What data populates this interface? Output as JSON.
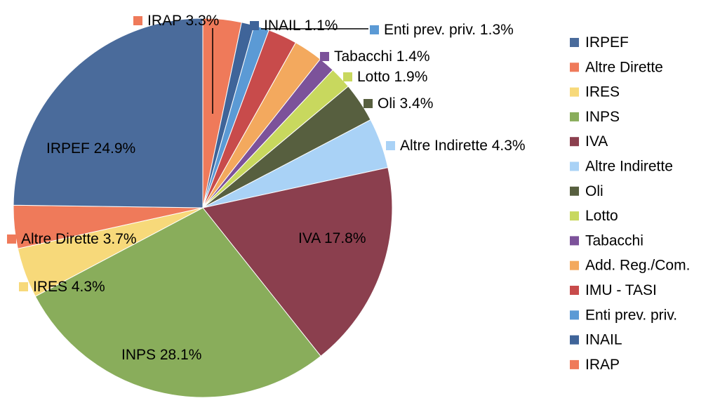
{
  "chart_data": {
    "type": "pie",
    "title": "",
    "start_angle_deg": 0,
    "direction": "clockwise",
    "legend_position": "right",
    "slices": [
      {
        "name": "IRAP",
        "value": 3.3,
        "label": "IRAP 3.3%",
        "color": "#ef7a5a"
      },
      {
        "name": "INAIL",
        "value": 1.1,
        "label": "INAIL 1.1%",
        "color": "#3f6499"
      },
      {
        "name": "Enti prev. priv.",
        "value": 1.3,
        "label": "Enti prev. priv. 1.3%",
        "color": "#5b9ad5"
      },
      {
        "name": "IMU - TASI",
        "value": 2.5,
        "label": "",
        "color": "#c84b4b"
      },
      {
        "name": "Add. Reg./Com.",
        "value": 2.5,
        "label": "",
        "color": "#f3a95e"
      },
      {
        "name": "Tabacchi",
        "value": 1.4,
        "label": "Tabacchi 1.4%",
        "color": "#7c529a"
      },
      {
        "name": "Lotto",
        "value": 1.9,
        "label": "Lotto 1.9%",
        "color": "#c8d85e"
      },
      {
        "name": "Oli",
        "value": 3.4,
        "label": "Oli 3.4%",
        "color": "#575f3f"
      },
      {
        "name": "Altre Indirette",
        "value": 4.3,
        "label": "Altre Indirette 4.3%",
        "color": "#a9d2f6"
      },
      {
        "name": "IVA",
        "value": 17.8,
        "label": "IVA 17.8%",
        "color": "#8b3f4e"
      },
      {
        "name": "INPS",
        "value": 28.1,
        "label": "INPS 28.1%",
        "color": "#89ad5b"
      },
      {
        "name": "IRES",
        "value": 4.3,
        "label": "IRES 4.3%",
        "color": "#f7d97a"
      },
      {
        "name": "Altre Dirette",
        "value": 3.7,
        "label": "Altre Dirette 3.7%",
        "color": "#ef7a5a"
      },
      {
        "name": "IRPEF",
        "value": 24.9,
        "label": "IRPEF 24.9%",
        "color": "#4a6b9b"
      }
    ],
    "legend": [
      {
        "name": "IRPEF",
        "color": "#4a6b9b"
      },
      {
        "name": "Altre Dirette",
        "color": "#ef7a5a"
      },
      {
        "name": "IRES",
        "color": "#f7d97a"
      },
      {
        "name": "INPS",
        "color": "#89ad5b"
      },
      {
        "name": "IVA",
        "color": "#8b3f4e"
      },
      {
        "name": "Altre Indirette",
        "color": "#a9d2f6"
      },
      {
        "name": "Oli",
        "color": "#575f3f"
      },
      {
        "name": "Lotto",
        "color": "#c8d85e"
      },
      {
        "name": "Tabacchi",
        "color": "#7c529a"
      },
      {
        "name": "Add. Reg./Com.",
        "color": "#f3a95e"
      },
      {
        "name": "IMU - TASI",
        "color": "#c84b4b"
      },
      {
        "name": "Enti prev. priv.",
        "color": "#5b9ad5"
      },
      {
        "name": "INAIL",
        "color": "#3f6499"
      },
      {
        "name": "IRAP",
        "color": "#ef7a5a"
      }
    ]
  }
}
